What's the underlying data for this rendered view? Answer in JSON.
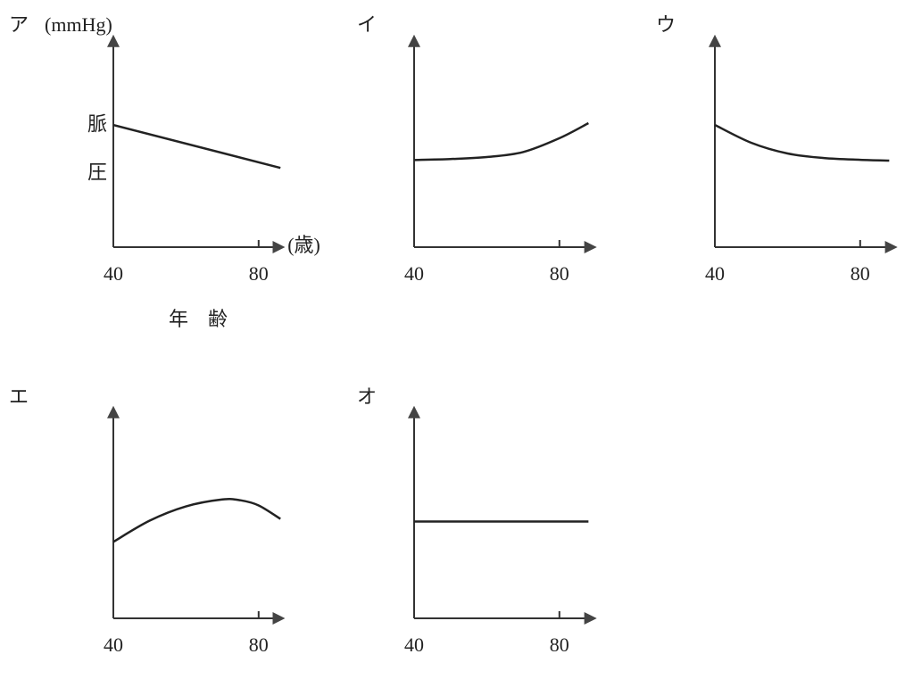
{
  "chart_data": [
    {
      "type": "line",
      "title": "ア",
      "y_unit": "(mmHg)",
      "ylabel": "脈圧",
      "x_unit": "(歳)",
      "xlabel": "年　齢",
      "x": [
        40,
        86
      ],
      "values": [
        61.7,
        40
      ],
      "color": "#222222",
      "xlim": [
        40,
        86
      ],
      "xticks": [
        40,
        80
      ],
      "ylim": [
        0,
        100
      ]
    },
    {
      "type": "line",
      "title": "イ",
      "x": [
        40,
        50,
        60,
        70,
        80,
        88
      ],
      "values": [
        44,
        44.5,
        45.5,
        48,
        55,
        62.6
      ],
      "color": "#222222",
      "xlim": [
        40,
        89
      ],
      "xticks": [
        40,
        80
      ],
      "ylim": [
        0,
        100
      ]
    },
    {
      "type": "line",
      "title": "ウ",
      "x": [
        40,
        50,
        60,
        70,
        80,
        88
      ],
      "values": [
        61.7,
        52.7,
        47.3,
        45,
        44.1,
        43.7
      ],
      "color": "#222222",
      "xlim": [
        40,
        89
      ],
      "xticks": [
        40,
        80
      ],
      "ylim": [
        0,
        100
      ]
    },
    {
      "type": "line",
      "title": "エ",
      "x": [
        40,
        50,
        60,
        70,
        75,
        80,
        86
      ],
      "values": [
        38.6,
        49.3,
        56.5,
        60,
        59.6,
        57,
        50.2
      ],
      "color": "#222222",
      "xlim": [
        40,
        86
      ],
      "xticks": [
        40,
        80
      ],
      "ylim": [
        0,
        100
      ]
    },
    {
      "type": "line",
      "title": "オ",
      "x": [
        40,
        88
      ],
      "values": [
        48.9,
        48.9
      ],
      "color": "#222222",
      "xlim": [
        40,
        89
      ],
      "xticks": [
        40,
        80
      ],
      "ylim": [
        0,
        100
      ]
    }
  ]
}
